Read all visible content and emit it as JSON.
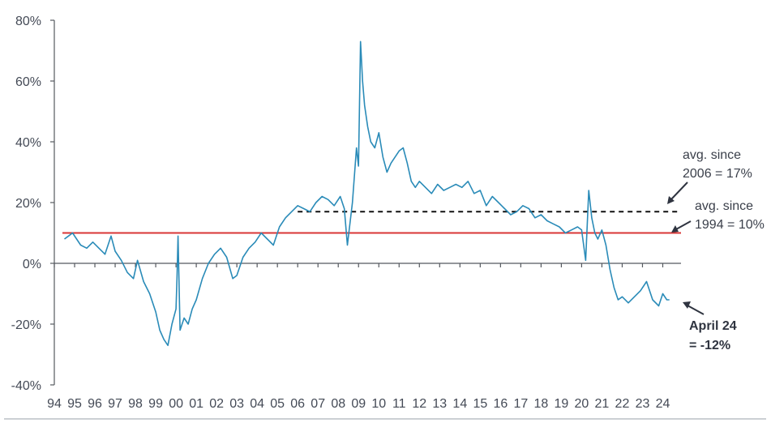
{
  "chart_data": {
    "type": "line",
    "title": "",
    "xlabel": "",
    "ylabel": "",
    "ylim": [
      -40,
      80
    ],
    "xlim": [
      1994,
      2024.9
    ],
    "yticks": [
      -40,
      -20,
      0,
      20,
      40,
      60,
      80
    ],
    "ytick_labels": [
      "-40%",
      "-20%",
      "0%",
      "20%",
      "40%",
      "60%",
      "80%"
    ],
    "xticks": [
      1994,
      1995,
      1996,
      1997,
      1998,
      1999,
      2000,
      2001,
      2002,
      2003,
      2004,
      2005,
      2006,
      2007,
      2008,
      2009,
      2010,
      2011,
      2012,
      2013,
      2014,
      2015,
      2016,
      2017,
      2018,
      2019,
      2020,
      2021,
      2022,
      2023,
      2024
    ],
    "xtick_labels": [
      "94",
      "95",
      "96",
      "97",
      "98",
      "99",
      "00",
      "01",
      "02",
      "03",
      "04",
      "05",
      "06",
      "07",
      "08",
      "09",
      "10",
      "11",
      "12",
      "13",
      "14",
      "15",
      "16",
      "17",
      "18",
      "19",
      "20",
      "21",
      "22",
      "23",
      "24"
    ],
    "grid": false,
    "series": [
      {
        "name": "",
        "color": "#2a8bb8",
        "x": [
          1994.5,
          1994.7,
          1994.9,
          1995.1,
          1995.3,
          1995.6,
          1995.9,
          1996.2,
          1996.5,
          1996.8,
          1997.0,
          1997.3,
          1997.6,
          1997.9,
          1998.1,
          1998.4,
          1998.7,
          1999.0,
          1999.2,
          1999.4,
          1999.6,
          1999.8,
          2000.0,
          2000.05,
          2000.1,
          2000.2,
          2000.4,
          2000.6,
          2000.8,
          2001.0,
          2001.3,
          2001.6,
          2001.9,
          2002.2,
          2002.5,
          2002.8,
          2003.0,
          2003.3,
          2003.6,
          2003.9,
          2004.2,
          2004.5,
          2004.8,
          2005.1,
          2005.4,
          2005.7,
          2006.0,
          2006.3,
          2006.6,
          2006.9,
          2007.2,
          2007.5,
          2007.8,
          2008.1,
          2008.3,
          2008.45,
          2008.7,
          2008.9,
          2009.0,
          2009.1,
          2009.2,
          2009.3,
          2009.45,
          2009.6,
          2009.8,
          2010.0,
          2010.2,
          2010.4,
          2010.6,
          2010.8,
          2011.0,
          2011.2,
          2011.4,
          2011.6,
          2011.8,
          2012.0,
          2012.3,
          2012.6,
          2012.9,
          2013.2,
          2013.5,
          2013.8,
          2014.1,
          2014.4,
          2014.7,
          2015.0,
          2015.3,
          2015.6,
          2015.9,
          2016.2,
          2016.5,
          2016.8,
          2017.1,
          2017.4,
          2017.7,
          2018.0,
          2018.3,
          2018.6,
          2018.9,
          2019.2,
          2019.5,
          2019.8,
          2020.0,
          2020.2,
          2020.35,
          2020.5,
          2020.65,
          2020.8,
          2021.0,
          2021.2,
          2021.4,
          2021.6,
          2021.8,
          2022.0,
          2022.3,
          2022.6,
          2022.9,
          2023.2,
          2023.5,
          2023.8,
          2024.0,
          2024.2,
          2024.33
        ],
        "y": [
          8,
          9,
          10,
          8,
          6,
          5,
          7,
          5,
          3,
          9,
          4,
          1,
          -3,
          -5,
          1,
          -6,
          -10,
          -16,
          -22,
          -25,
          -27,
          -20,
          -15,
          -5,
          9,
          -22,
          -18,
          -20,
          -15,
          -12,
          -5,
          0,
          3,
          5,
          2,
          -5,
          -4,
          2,
          5,
          7,
          10,
          8,
          6,
          12,
          15,
          17,
          19,
          18,
          17,
          20,
          22,
          21,
          19,
          22,
          18,
          6,
          20,
          38,
          32,
          73,
          60,
          52,
          45,
          40,
          38,
          43,
          35,
          30,
          33,
          35,
          37,
          38,
          33,
          27,
          25,
          27,
          25,
          23,
          26,
          24,
          25,
          26,
          25,
          27,
          23,
          24,
          19,
          22,
          20,
          18,
          16,
          17,
          19,
          18,
          15,
          16,
          14,
          13,
          12,
          10,
          11,
          12,
          11,
          1,
          24,
          15,
          10,
          8,
          11,
          6,
          -2,
          -8,
          -12,
          -11,
          -13,
          -11,
          -9,
          -6,
          -12,
          -14,
          -10,
          -12,
          -12
        ]
      }
    ],
    "reference_lines": [
      {
        "y": 17,
        "from_x": 2006,
        "to_x": 2024.9,
        "color": "#111111",
        "style": "dashed"
      },
      {
        "y": 10,
        "from_x": 1994.4,
        "to_x": 2024.9,
        "color": "#d93636",
        "style": "solid"
      }
    ],
    "annotations": [
      {
        "lines": [
          "avg. since",
          "2006 = 17%"
        ],
        "bold": false
      },
      {
        "lines": [
          "avg. since",
          "1994 = 10%"
        ],
        "bold": false
      },
      {
        "lines": [
          "April 24",
          "= -12%"
        ],
        "bold": true
      }
    ]
  }
}
